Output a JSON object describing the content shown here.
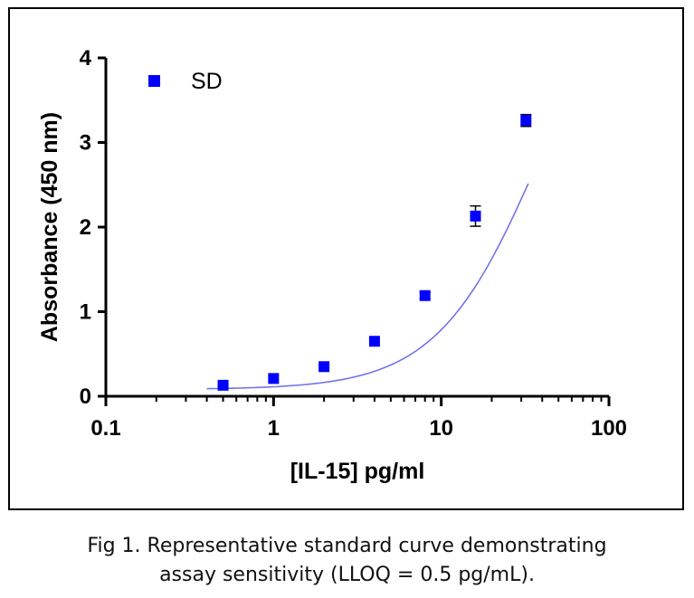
{
  "chart_data": {
    "type": "scatter",
    "xscale": "log",
    "xlim": [
      0.1,
      100
    ],
    "ylim": [
      0,
      4
    ],
    "xticks": [
      0.1,
      1,
      10,
      100
    ],
    "xtick_labels": [
      "0.1",
      "1",
      "10",
      "100"
    ],
    "yticks": [
      0,
      1,
      2,
      3,
      4
    ],
    "ytick_labels": [
      "0",
      "1",
      "2",
      "3",
      "4"
    ],
    "xlabel": "[IL-15] pg/ml",
    "ylabel": "Absorbance (450 nm)",
    "legend": {
      "placement": "top-left",
      "entries": [
        "SD"
      ]
    },
    "grid": false,
    "series": [
      {
        "name": "SD",
        "x": [
          0.5,
          1,
          2,
          4,
          8,
          16,
          32
        ],
        "y": [
          0.13,
          0.21,
          0.35,
          0.65,
          1.19,
          2.13,
          3.26
        ],
        "error": [
          0,
          0,
          0,
          0,
          0.04,
          0.12,
          0.07
        ]
      }
    ],
    "fit_curve": {
      "type": "4PL",
      "x_range": [
        0.4,
        33
      ]
    },
    "colors": {
      "marker": "#0000ff",
      "curve": "#7373e6",
      "axis": "#000000"
    }
  },
  "caption": {
    "line1": "Fig 1. Representative standard curve demonstrating",
    "line2": "assay sensitivity (LLOQ = 0.5 pg/mL)."
  }
}
